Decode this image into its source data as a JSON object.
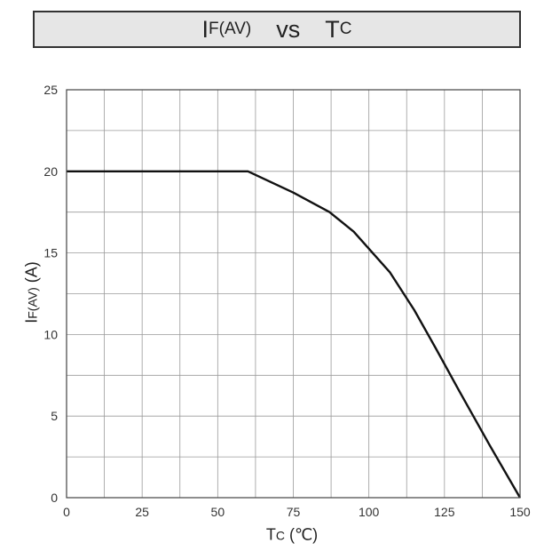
{
  "chart_data": {
    "type": "line",
    "title": {
      "main": "I",
      "sub": "F(AV)",
      "mid": "vs",
      "main2": "T",
      "sub2": "C"
    },
    "xlabel": {
      "main": "T",
      "sub": "C",
      "unit": "(℃)"
    },
    "ylabel": {
      "main": "I",
      "sub": "F(AV)",
      "unit": "(A)"
    },
    "xlim": [
      0,
      150
    ],
    "ylim": [
      0,
      25
    ],
    "xticks": [
      0,
      25,
      50,
      75,
      100,
      125,
      150
    ],
    "yticks": [
      0,
      5,
      10,
      15,
      20,
      25
    ],
    "grid": true,
    "series": [
      {
        "x": [
          0,
          60,
          75,
          87,
          95,
          107,
          115,
          122,
          130,
          140,
          150
        ],
        "y": [
          20,
          20,
          18.7,
          17.5,
          16.3,
          13.8,
          11.5,
          9.2,
          6.5,
          3.2,
          0
        ]
      }
    ]
  }
}
